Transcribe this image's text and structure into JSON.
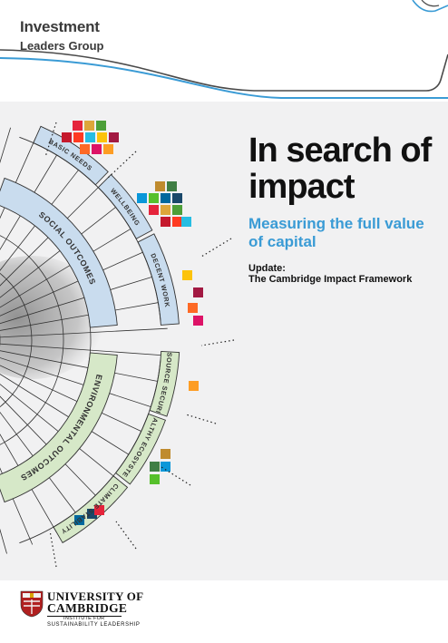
{
  "brand": {
    "line1": "Investment",
    "line2": "Leaders Group"
  },
  "title": "In search of impact",
  "subtitle": "Measuring the full value of capital",
  "update": {
    "line1": "Update:",
    "line2": "The Cambridge Impact Framework"
  },
  "diagram": {
    "inner_segments": [
      "SOCIAL OUTCOMES",
      "ENVIRONMENTAL OUTCOMES"
    ],
    "outer_segments": [
      "BASIC NEEDS",
      "WELLBEING",
      "DECENT WORK",
      "RESOURCE SECURITY",
      "HEALTHY ECOSYSTEMS",
      "CLIMATE STABILITY"
    ],
    "social_color": "#c9dcee",
    "environmental_color": "#d6e8c8"
  },
  "footer": {
    "university_line1": "UNIVERSITY OF",
    "university_line2": "CAMBRIDGE",
    "institute_line1": "INSTITUTE FOR",
    "institute_line2": "SUSTAINABILITY LEADERSHIP"
  },
  "colors": {
    "accent_blue": "#3a9bd5",
    "line_dark": "#4a4a4a",
    "background_gray": "#f1f1f2"
  }
}
